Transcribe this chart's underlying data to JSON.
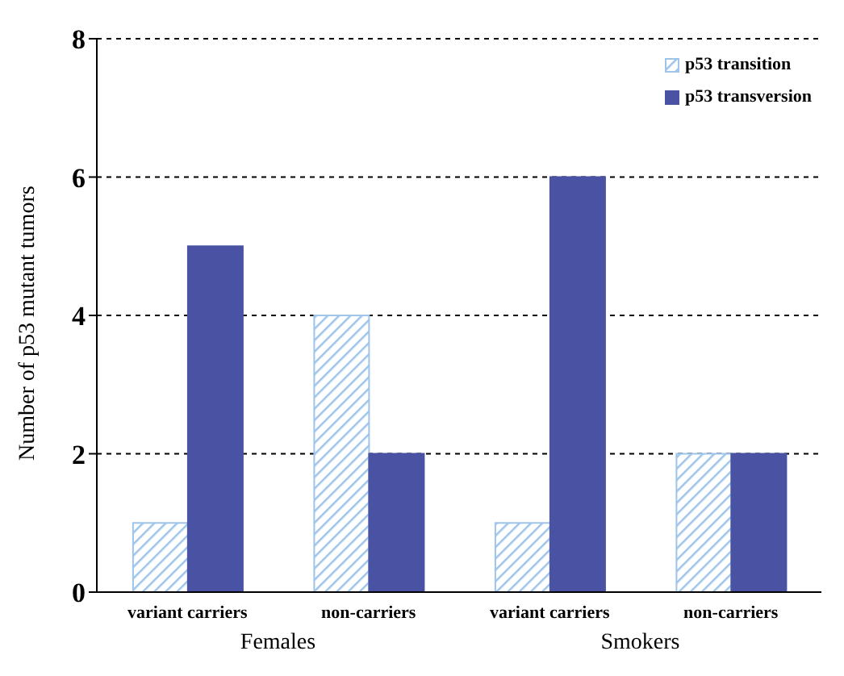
{
  "chart_data": {
    "type": "bar",
    "ylabel": "Number of p53 mutant tumors",
    "categories": [
      "variant carriers",
      "non-carriers",
      "variant carriers",
      "non-carriers"
    ],
    "series": [
      {
        "name": "p53 transition",
        "color": "#9ec4ea",
        "values": [
          1,
          4,
          1,
          2
        ]
      },
      {
        "name": "p53 transversion",
        "color": "#4a53a3",
        "values": [
          5,
          2,
          6,
          2
        ]
      }
    ],
    "ylim": [
      0,
      8
    ],
    "yticks": [
      0,
      2,
      4,
      6,
      8
    ],
    "grid": "y",
    "legend": "top right",
    "annotations": [
      "Females",
      "Smokers"
    ]
  }
}
